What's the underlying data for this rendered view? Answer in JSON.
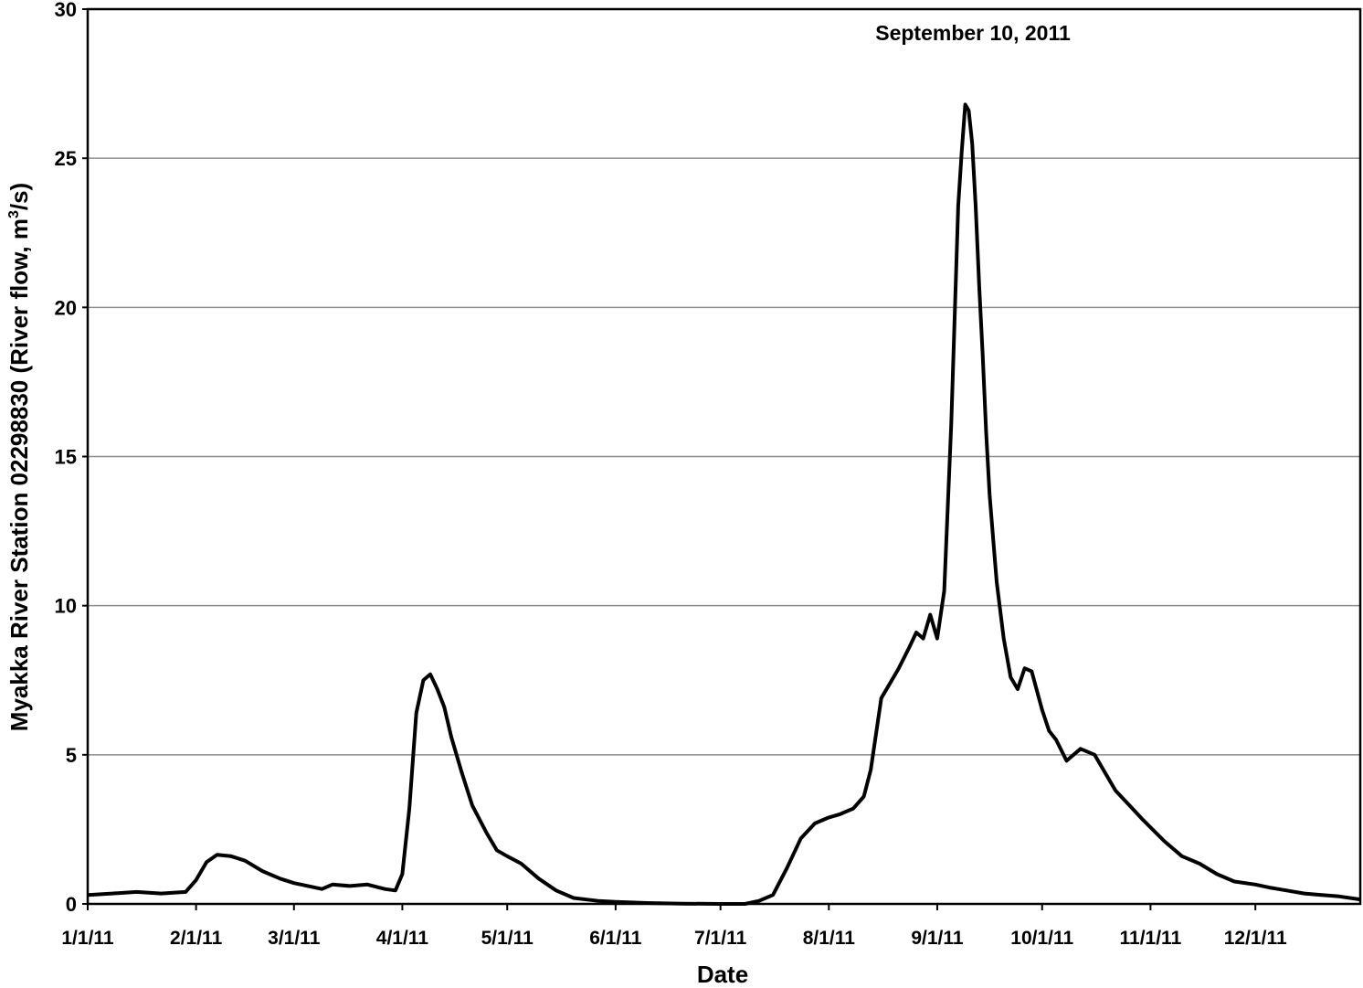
{
  "chart_data": {
    "type": "line",
    "title": "",
    "annotation": "September 10, 2011",
    "xlabel": "Date",
    "ylabel_main": "Myakka River Station 02298830 (River flow, m",
    "ylabel_sup": "3",
    "ylabel_end": "/s)",
    "ylim": [
      0,
      30
    ],
    "yticks": [
      0,
      5,
      10,
      15,
      20,
      25,
      30
    ],
    "ytick_labels": [
      "0",
      "5",
      "10",
      "15",
      "20",
      "25",
      "30"
    ],
    "xlim": [
      "2011-01-01",
      "2011-12-31"
    ],
    "xticks": [
      "2011-01-01",
      "2011-02-01",
      "2011-03-01",
      "2011-04-01",
      "2011-05-01",
      "2011-06-01",
      "2011-07-01",
      "2011-08-01",
      "2011-09-01",
      "2011-10-01",
      "2011-11-01",
      "2011-12-01"
    ],
    "xtick_labels": [
      "1/1/11",
      "2/1/11",
      "3/1/11",
      "4/1/11",
      "5/1/11",
      "6/1/11",
      "7/1/11",
      "8/1/11",
      "9/1/11",
      "10/1/11",
      "11/1/11",
      "12/1/11"
    ],
    "grid": true,
    "line_color": "#000000",
    "grid_color": "#8c8c8c",
    "series": [
      {
        "x": [
          "2011-01-01",
          "2011-01-08",
          "2011-01-15",
          "2011-01-22",
          "2011-01-29",
          "2011-02-01",
          "2011-02-04",
          "2011-02-07",
          "2011-02-11",
          "2011-02-15",
          "2011-02-20",
          "2011-02-25",
          "2011-03-01",
          "2011-03-05",
          "2011-03-09",
          "2011-03-12",
          "2011-03-17",
          "2011-03-22",
          "2011-03-27",
          "2011-03-30",
          "2011-04-01",
          "2011-04-03",
          "2011-04-05",
          "2011-04-07",
          "2011-04-09",
          "2011-04-11",
          "2011-04-13",
          "2011-04-15",
          "2011-04-18",
          "2011-04-21",
          "2011-04-25",
          "2011-04-28",
          "2011-05-01",
          "2011-05-05",
          "2011-05-10",
          "2011-05-15",
          "2011-05-20",
          "2011-05-27",
          "2011-06-01",
          "2011-06-10",
          "2011-06-20",
          "2011-07-01",
          "2011-07-08",
          "2011-07-12",
          "2011-07-16",
          "2011-07-20",
          "2011-07-24",
          "2011-07-28",
          "2011-08-01",
          "2011-08-04",
          "2011-08-08",
          "2011-08-11",
          "2011-08-13",
          "2011-08-16",
          "2011-08-18",
          "2011-08-21",
          "2011-08-24",
          "2011-08-26",
          "2011-08-28",
          "2011-08-30",
          "2011-09-01",
          "2011-09-03",
          "2011-09-05",
          "2011-09-07",
          "2011-09-08",
          "2011-09-09",
          "2011-09-10",
          "2011-09-11",
          "2011-09-12",
          "2011-09-13",
          "2011-09-14",
          "2011-09-15",
          "2011-09-16",
          "2011-09-18",
          "2011-09-20",
          "2011-09-22",
          "2011-09-24",
          "2011-09-26",
          "2011-09-28",
          "2011-10-01",
          "2011-10-03",
          "2011-10-05",
          "2011-10-08",
          "2011-10-12",
          "2011-10-16",
          "2011-10-19",
          "2011-10-22",
          "2011-10-26",
          "2011-10-30",
          "2011-11-05",
          "2011-11-10",
          "2011-11-15",
          "2011-11-20",
          "2011-11-25",
          "2011-12-01",
          "2011-12-05",
          "2011-12-10",
          "2011-12-15",
          "2011-12-20",
          "2011-12-25",
          "2011-12-31"
        ],
        "y": [
          0.3,
          0.35,
          0.4,
          0.35,
          0.4,
          0.8,
          1.4,
          1.65,
          1.6,
          1.45,
          1.1,
          0.85,
          0.7,
          0.6,
          0.5,
          0.65,
          0.6,
          0.65,
          0.5,
          0.45,
          1.0,
          3.2,
          6.4,
          7.5,
          7.7,
          7.2,
          6.6,
          5.6,
          4.4,
          3.3,
          2.4,
          1.8,
          1.6,
          1.35,
          0.85,
          0.45,
          0.2,
          0.1,
          0.07,
          0.03,
          0.01,
          0.0,
          0.0,
          0.1,
          0.3,
          1.2,
          2.2,
          2.7,
          2.9,
          3.0,
          3.2,
          3.6,
          4.5,
          6.9,
          7.3,
          7.9,
          8.6,
          9.1,
          8.9,
          9.7,
          8.9,
          10.5,
          16.1,
          23.4,
          25.2,
          26.8,
          26.6,
          25.5,
          23.4,
          20.7,
          18.4,
          15.8,
          13.7,
          10.8,
          8.9,
          7.6,
          7.2,
          7.9,
          7.8,
          6.5,
          5.8,
          5.5,
          4.8,
          5.2,
          5.0,
          4.4,
          3.8,
          3.3,
          2.8,
          2.1,
          1.6,
          1.35,
          1.0,
          0.75,
          0.65,
          0.55,
          0.45,
          0.35,
          0.3,
          0.25,
          0.15
        ]
      }
    ]
  }
}
